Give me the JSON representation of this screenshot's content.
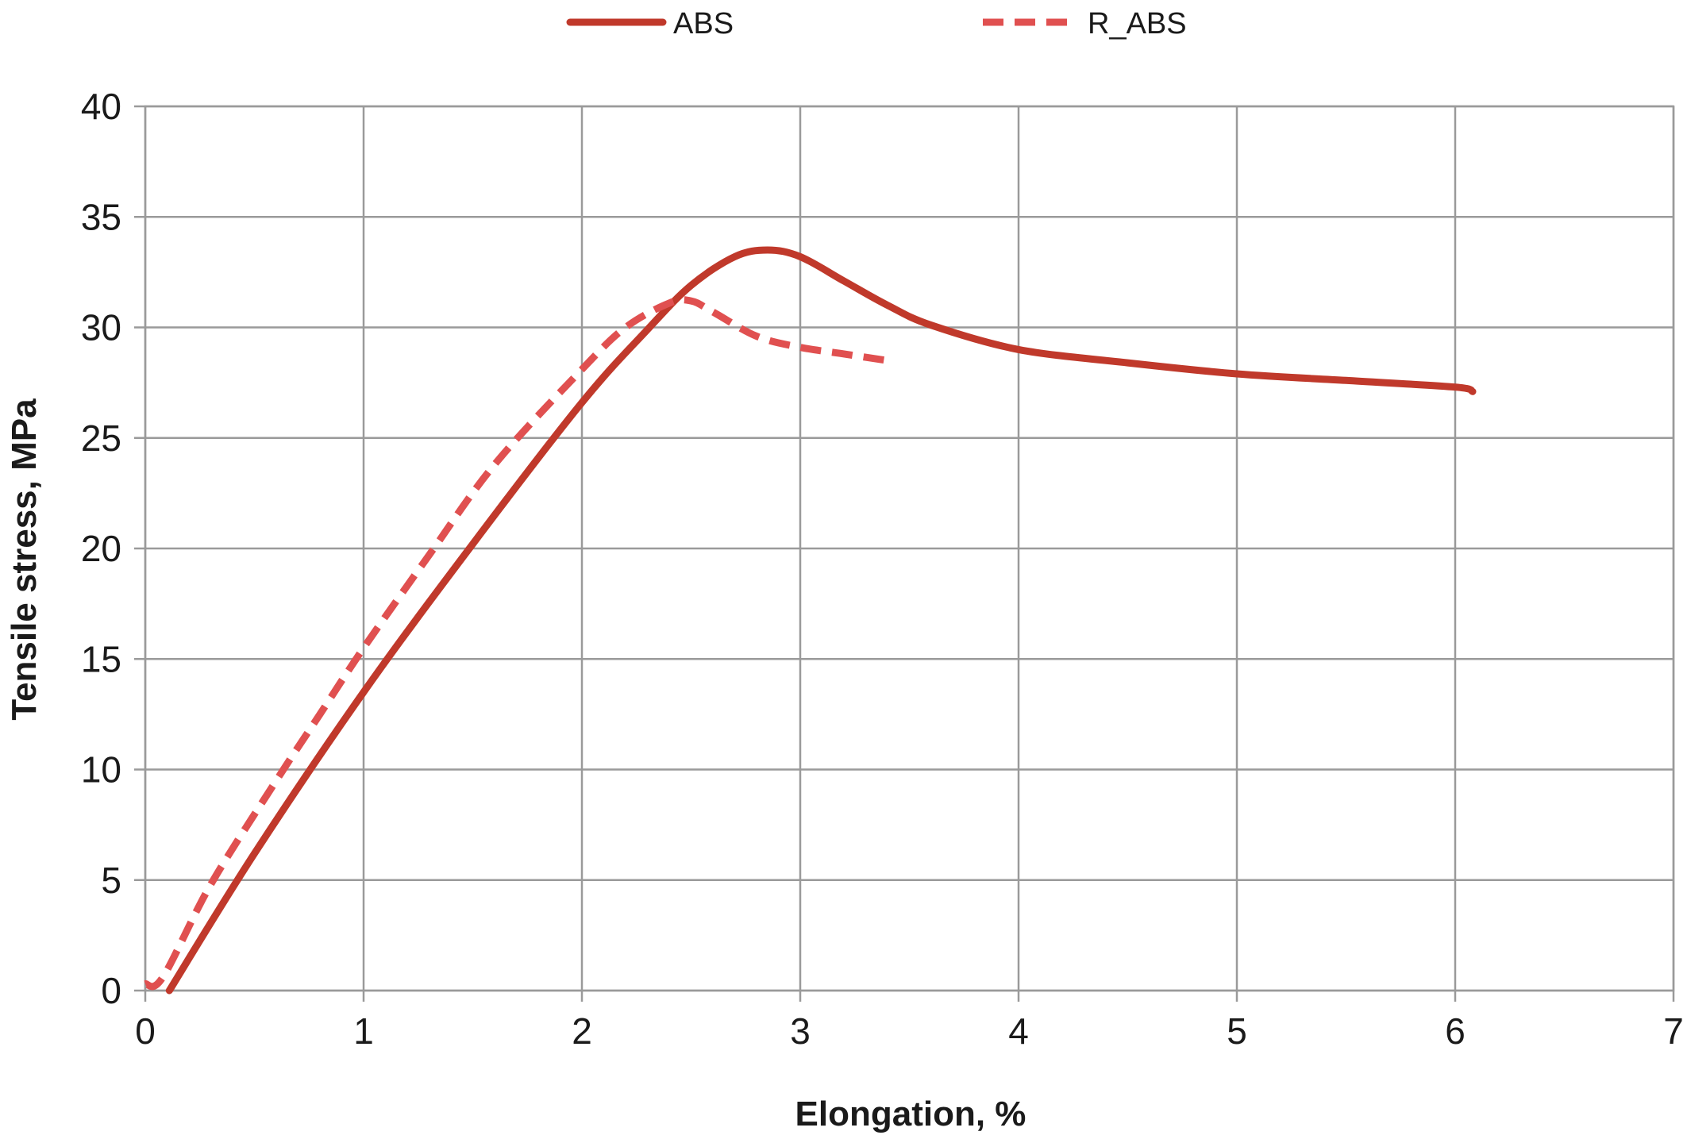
{
  "chart_data": {
    "type": "line",
    "xlabel": "Elongation, %",
    "ylabel": "Tensile stress, MPa",
    "xlim": [
      0,
      7
    ],
    "ylim": [
      0,
      40
    ],
    "xticks": [
      0,
      1,
      2,
      3,
      4,
      5,
      6,
      7
    ],
    "yticks": [
      0,
      5,
      10,
      15,
      20,
      25,
      30,
      35,
      40
    ],
    "grid": true,
    "legend_position": "top-center",
    "series": [
      {
        "name": "ABS",
        "color": "#c0392b",
        "style": "solid",
        "points": [
          [
            0.11,
            0
          ],
          [
            0.5,
            6.2
          ],
          [
            1.0,
            13.5
          ],
          [
            1.5,
            20.2
          ],
          [
            2.0,
            26.6
          ],
          [
            2.3,
            29.9
          ],
          [
            2.5,
            31.9
          ],
          [
            2.7,
            33.2
          ],
          [
            2.85,
            33.5
          ],
          [
            3.0,
            33.2
          ],
          [
            3.2,
            32.1
          ],
          [
            3.4,
            31.0
          ],
          [
            3.6,
            30.1
          ],
          [
            4.0,
            29.0
          ],
          [
            4.5,
            28.4
          ],
          [
            5.0,
            27.9
          ],
          [
            5.5,
            27.6
          ],
          [
            6.0,
            27.3
          ],
          [
            6.08,
            27.1
          ]
        ]
      },
      {
        "name": "R_ABS",
        "color": "#e05050",
        "style": "dashed",
        "points": [
          [
            0.0,
            0.3
          ],
          [
            0.08,
            0.6
          ],
          [
            0.3,
            4.8
          ],
          [
            0.6,
            9.5
          ],
          [
            0.8,
            12.5
          ],
          [
            1.0,
            15.5
          ],
          [
            1.3,
            19.7
          ],
          [
            1.6,
            23.8
          ],
          [
            2.0,
            28.1
          ],
          [
            2.2,
            30.0
          ],
          [
            2.4,
            31.1
          ],
          [
            2.5,
            31.2
          ],
          [
            2.6,
            30.7
          ],
          [
            2.8,
            29.6
          ],
          [
            3.0,
            29.1
          ],
          [
            3.2,
            28.8
          ],
          [
            3.4,
            28.5
          ]
        ]
      }
    ]
  }
}
